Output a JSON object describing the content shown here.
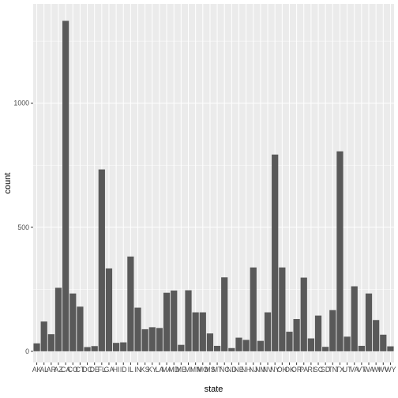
{
  "chart_data": {
    "type": "bar",
    "xlabel": "state",
    "ylabel": "count",
    "y_ticks": [
      0,
      500,
      1000
    ],
    "ylim": [
      0,
      1400
    ],
    "grid": true,
    "categories": [
      "AK",
      "AL",
      "AR",
      "AZ",
      "CA",
      "CO",
      "CT",
      "DC",
      "DE",
      "FL",
      "GA",
      "HI",
      "ID",
      "IL",
      "IN",
      "KS",
      "KY",
      "LA",
      "MA",
      "MD",
      "ME",
      "MI",
      "MN",
      "MO",
      "MS",
      "MT",
      "NC",
      "ND",
      "NE",
      "NH",
      "NJ",
      "NM",
      "NV",
      "NY",
      "OH",
      "OK",
      "OR",
      "PA",
      "RI",
      "SC",
      "SD",
      "TN",
      "TX",
      "UT",
      "VA",
      "VT",
      "WA",
      "WI",
      "WV",
      "WY"
    ],
    "values": [
      32,
      120,
      69,
      256,
      1332,
      233,
      180,
      17,
      21,
      733,
      334,
      34,
      36,
      382,
      176,
      89,
      97,
      94,
      236,
      245,
      26,
      246,
      157,
      157,
      72,
      22,
      298,
      13,
      55,
      46,
      338,
      42,
      157,
      793,
      338,
      79,
      130,
      297,
      52,
      144,
      18,
      166,
      806,
      59,
      262,
      22,
      233,
      126,
      67,
      20
    ],
    "bar_color": "#595959",
    "panel_color": "#ebebeb",
    "grid_color": "#ffffff"
  }
}
